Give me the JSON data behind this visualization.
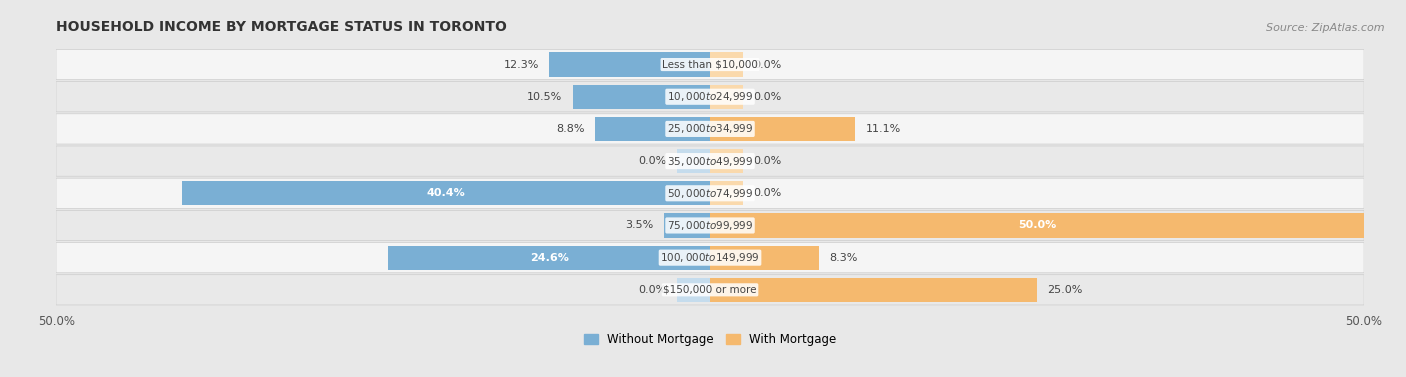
{
  "title": "HOUSEHOLD INCOME BY MORTGAGE STATUS IN TORONTO",
  "source": "Source: ZipAtlas.com",
  "categories": [
    "Less than $10,000",
    "$10,000 to $24,999",
    "$25,000 to $34,999",
    "$35,000 to $49,999",
    "$50,000 to $74,999",
    "$75,000 to $99,999",
    "$100,000 to $149,999",
    "$150,000 or more"
  ],
  "without_mortgage": [
    12.3,
    10.5,
    8.8,
    0.0,
    40.4,
    3.5,
    24.6,
    0.0
  ],
  "with_mortgage": [
    0.0,
    0.0,
    11.1,
    0.0,
    0.0,
    50.0,
    8.3,
    25.0
  ],
  "bar_color_left": "#7aafd4",
  "bar_color_right": "#f5b96e",
  "bar_color_left_light": "#c5dced",
  "bar_color_right_light": "#fad9ac",
  "background_color": "#e8e8e8",
  "row_bg_light": "#f5f5f5",
  "row_bg_dark": "#e9e9e9",
  "xlim": [
    -50,
    50
  ],
  "xticklabels": [
    "50.0%",
    "50.0%"
  ],
  "legend_left": "Without Mortgage",
  "legend_right": "With Mortgage",
  "bar_height": 0.75,
  "stub_size": 2.5,
  "label_fontsize": 8,
  "title_fontsize": 10,
  "source_fontsize": 8
}
